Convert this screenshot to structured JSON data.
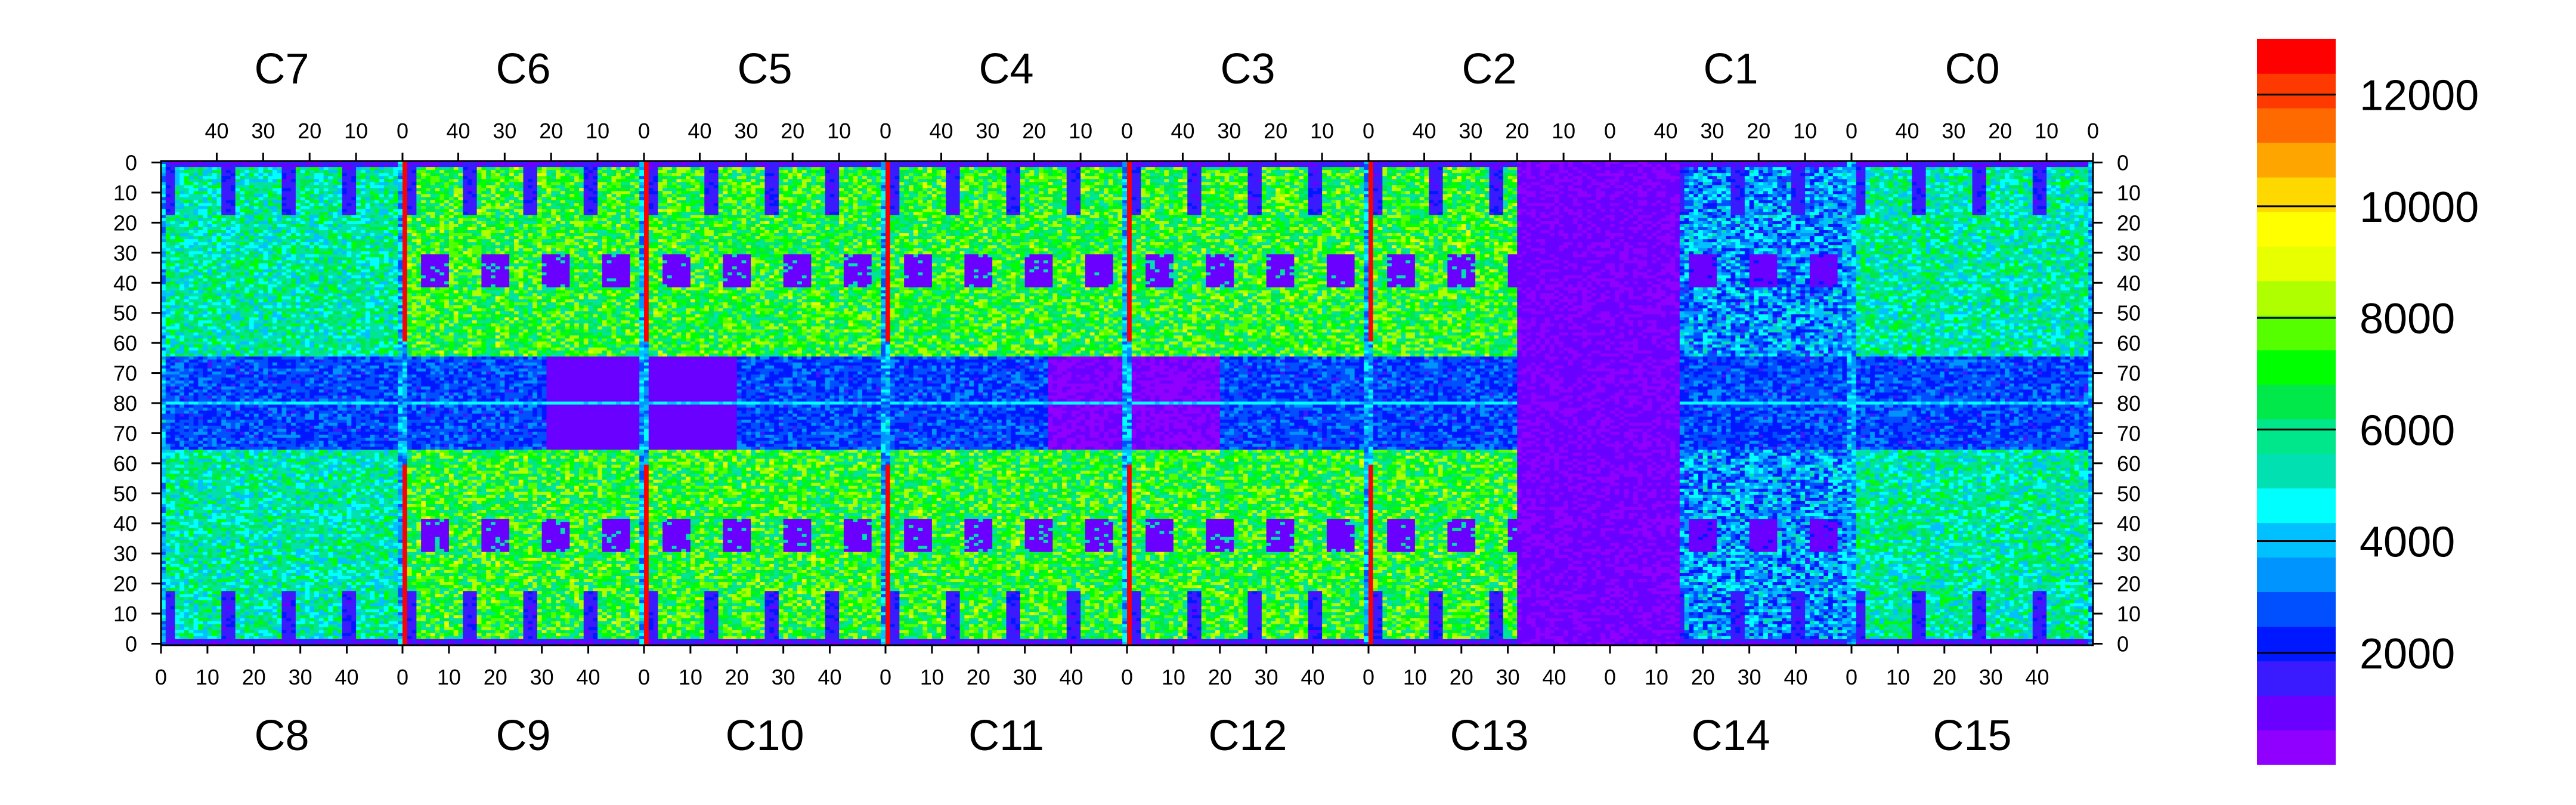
{
  "chart_data": {
    "type": "heatmap",
    "colormap": [
      "#8f00ff",
      "#6a00ff",
      "#3a1aff",
      "#0018ff",
      "#0050ff",
      "#0094ff",
      "#00c0ff",
      "#00ffff",
      "#00e0b0",
      "#00e68a",
      "#00e84a",
      "#00ff00",
      "#55ff00",
      "#b0ff00",
      "#e8ff00",
      "#ffff00",
      "#ffd800",
      "#ffa500",
      "#ff6a00",
      "#ff3a00",
      "#ff0000"
    ],
    "zlim": [
      0,
      13000
    ],
    "colorbar_ticks": [
      "2000",
      "4000",
      "6000",
      "8000",
      "10000",
      "12000"
    ],
    "colorbar_values": [
      2000,
      4000,
      6000,
      8000,
      10000,
      12000
    ],
    "top_chip_labels": [
      "C7",
      "C6",
      "C5",
      "C4",
      "C3",
      "C2",
      "C1",
      "C0"
    ],
    "bottom_chip_labels": [
      "C8",
      "C9",
      "C10",
      "C11",
      "C12",
      "C13",
      "C14",
      "C15"
    ],
    "top_column_ticks": [
      "40",
      "30",
      "20",
      "10",
      "0"
    ],
    "bottom_column_ticks": [
      "0",
      "10",
      "20",
      "30",
      "40"
    ],
    "row_ticks_upper": [
      "0",
      "10",
      "20",
      "30",
      "40",
      "50",
      "60",
      "70",
      "80"
    ],
    "row_ticks_lower": [
      "70",
      "60",
      "50",
      "40",
      "30",
      "20",
      "10",
      "0"
    ],
    "columns_per_chip": 52,
    "rows_per_half": 80,
    "typical_levels": {
      "edge_low": 900,
      "frame_low": 2500,
      "pad_region": 7000,
      "noisy_column": 12500,
      "dead_region": 500
    }
  }
}
